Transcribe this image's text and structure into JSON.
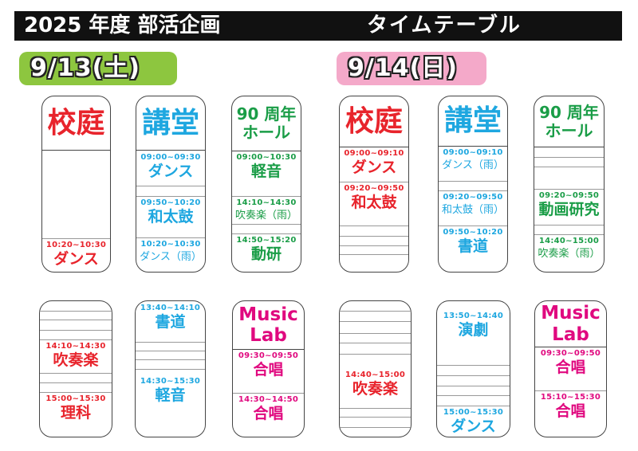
{
  "title": {
    "main": "2025 年度 部活企画",
    "sub": "タイムテーブル"
  },
  "colors": {
    "red": "#e8242c",
    "blue": "#1ea7e0",
    "green": "#1a9d47",
    "magenta": "#e0097f",
    "day1_badge": "#8dc63f",
    "day2_badge": "#f4a9c9"
  },
  "days": [
    {
      "label": "9/13(土)",
      "cards": [
        {
          "header": [
            "校庭"
          ],
          "color": "red",
          "slots": [
            {
              "time": "10:20~10:30",
              "name": "ダンス"
            }
          ]
        },
        {
          "header": [
            "講堂"
          ],
          "color": "blue",
          "slots": [
            {
              "time": "09:00~09:30",
              "name": "ダンス"
            },
            {
              "time": "09:50~10:20",
              "name": "和太鼓"
            },
            {
              "time": "10:20~10:30",
              "name": "ダンス（雨）"
            }
          ]
        },
        {
          "header": [
            "90 周年",
            "ホール"
          ],
          "color": "green",
          "slots": [
            {
              "time": "09:00~10:30",
              "name": "軽音"
            },
            {
              "time": "14:10~14:30",
              "name": "吹奏楽（雨）"
            },
            {
              "time": "14:50~15:20",
              "name": "動研"
            }
          ]
        },
        {
          "header": [],
          "color": "red",
          "slots": [
            {
              "time": "14:10~14:30",
              "name": "吹奏楽"
            },
            {
              "time": "15:00~15:30",
              "name": "理科"
            }
          ]
        },
        {
          "header": [],
          "color": "blue",
          "slots": [
            {
              "time": "13:40~14:10",
              "name": "書道"
            },
            {
              "time": "14:30~15:30",
              "name": "軽音"
            }
          ]
        },
        {
          "header": [
            "Music",
            "Lab"
          ],
          "color": "magenta",
          "slots": [
            {
              "time": "09:30~09:50",
              "name": "合唱"
            },
            {
              "time": "14:30~14:50",
              "name": "合唱"
            }
          ]
        }
      ]
    },
    {
      "label": "9/14(日)",
      "cards": [
        {
          "header": [
            "校庭"
          ],
          "color": "red",
          "slots": [
            {
              "time": "09:00~09:10",
              "name": "ダンス"
            },
            {
              "time": "09:20~09:50",
              "name": "和太鼓"
            }
          ]
        },
        {
          "header": [
            "講堂"
          ],
          "color": "blue",
          "slots": [
            {
              "time": "09:00~09:10",
              "name": "ダンス（雨）"
            },
            {
              "time": "09:20~09:50",
              "name": "和太鼓（雨）"
            },
            {
              "time": "09:50~10:20",
              "name": "書道"
            }
          ]
        },
        {
          "header": [
            "90 周年",
            "ホール"
          ],
          "color": "green",
          "slots": [
            {
              "time": "09:20~09:50",
              "name": "動画研究"
            },
            {
              "time": "14:40~15:00",
              "name": "吹奏楽（雨）"
            }
          ]
        },
        {
          "header": [],
          "color": "red",
          "slots": [
            {
              "time": "14:40~15:00",
              "name": "吹奏楽"
            }
          ]
        },
        {
          "header": [],
          "color": "blue",
          "slots": [
            {
              "time": "13:50~14:40",
              "name": "演劇"
            },
            {
              "time": "15:00~15:30",
              "name": "ダンス"
            }
          ]
        },
        {
          "header": [
            "Music",
            "Lab"
          ],
          "color": "magenta",
          "slots": [
            {
              "time": "09:30~09:50",
              "name": "合唱"
            },
            {
              "time": "15:10~15:30",
              "name": "合唱"
            }
          ]
        }
      ]
    }
  ]
}
